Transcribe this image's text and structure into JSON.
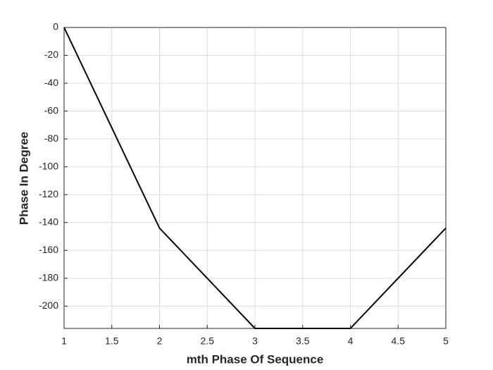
{
  "chart_data": {
    "type": "line",
    "x_label": "mth Phase Of Sequence",
    "y_label": "Phase In Degree",
    "x": [
      1,
      2,
      3,
      4,
      5
    ],
    "series": [
      {
        "color": "#000000",
        "values": [
          0,
          -144,
          -216,
          -216,
          -144
        ]
      }
    ],
    "xlim": [
      1,
      5
    ],
    "xticks": [
      1,
      1.5,
      2,
      2.5,
      3,
      3.5,
      4,
      4.5,
      5
    ],
    "ylim": [
      -216,
      0
    ],
    "yticks": [
      0,
      -20,
      -40,
      -60,
      -80,
      -100,
      -120,
      -140,
      -160,
      -180,
      -200
    ],
    "grid": true
  }
}
